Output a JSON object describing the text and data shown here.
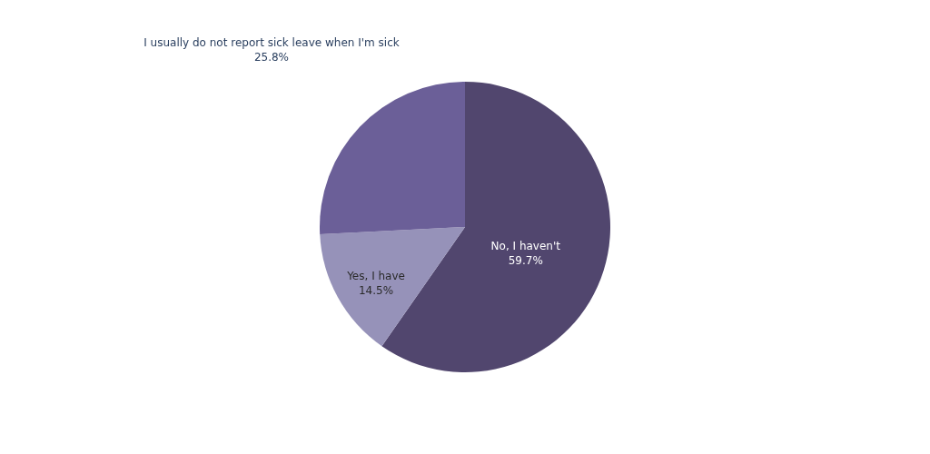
{
  "chart_data": {
    "type": "pie",
    "categories": [
      "No, I haven't",
      "Yes, I have",
      "I usually do not report sick leave when I'm sick"
    ],
    "values": [
      59.7,
      14.5,
      25.8
    ],
    "colors": [
      "#51466e",
      "#9692b9",
      "#6b5f98"
    ],
    "value_labels": [
      "59.7%",
      "14.5%",
      "25.8%"
    ]
  }
}
